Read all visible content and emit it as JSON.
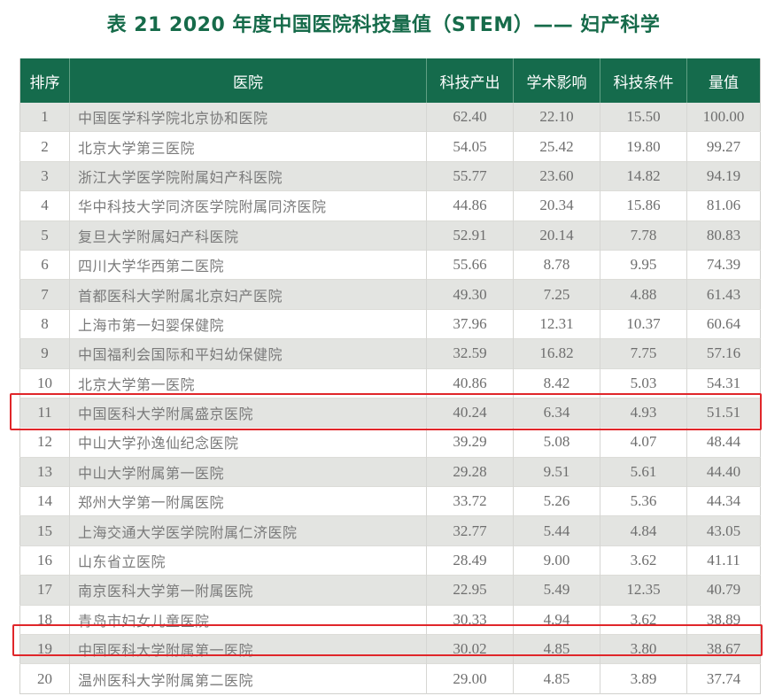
{
  "title": "表 21   2020 年度中国医院科技量值（STEM）—— 妇产科学",
  "table": {
    "headers": [
      "排序",
      "医院",
      "科技产出",
      "学术影响",
      "科技条件",
      "量值"
    ],
    "rows": [
      {
        "rank": "1",
        "hospital": "中国医学科学院北京协和医院",
        "output": "62.40",
        "impact": "22.10",
        "condition": "15.50",
        "value": "100.00"
      },
      {
        "rank": "2",
        "hospital": "北京大学第三医院",
        "output": "54.05",
        "impact": "25.42",
        "condition": "19.80",
        "value": "99.27"
      },
      {
        "rank": "3",
        "hospital": "浙江大学医学院附属妇产科医院",
        "output": "55.77",
        "impact": "23.60",
        "condition": "14.82",
        "value": "94.19"
      },
      {
        "rank": "4",
        "hospital": "华中科技大学同济医学院附属同济医院",
        "output": "44.86",
        "impact": "20.34",
        "condition": "15.86",
        "value": "81.06"
      },
      {
        "rank": "5",
        "hospital": "复旦大学附属妇产科医院",
        "output": "52.91",
        "impact": "20.14",
        "condition": "7.78",
        "value": "80.83"
      },
      {
        "rank": "6",
        "hospital": "四川大学华西第二医院",
        "output": "55.66",
        "impact": "8.78",
        "condition": "9.95",
        "value": "74.39"
      },
      {
        "rank": "7",
        "hospital": "首都医科大学附属北京妇产医院",
        "output": "49.30",
        "impact": "7.25",
        "condition": "4.88",
        "value": "61.43"
      },
      {
        "rank": "8",
        "hospital": "上海市第一妇婴保健院",
        "output": "37.96",
        "impact": "12.31",
        "condition": "10.37",
        "value": "60.64"
      },
      {
        "rank": "9",
        "hospital": "中国福利会国际和平妇幼保健院",
        "output": "32.59",
        "impact": "16.82",
        "condition": "7.75",
        "value": "57.16"
      },
      {
        "rank": "10",
        "hospital": "北京大学第一医院",
        "output": "40.86",
        "impact": "8.42",
        "condition": "5.03",
        "value": "54.31"
      },
      {
        "rank": "11",
        "hospital": "中国医科大学附属盛京医院",
        "output": "40.24",
        "impact": "6.34",
        "condition": "4.93",
        "value": "51.51"
      },
      {
        "rank": "12",
        "hospital": "中山大学孙逸仙纪念医院",
        "output": "39.29",
        "impact": "5.08",
        "condition": "4.07",
        "value": "48.44"
      },
      {
        "rank": "13",
        "hospital": "中山大学附属第一医院",
        "output": "29.28",
        "impact": "9.51",
        "condition": "5.61",
        "value": "44.40"
      },
      {
        "rank": "14",
        "hospital": "郑州大学第一附属医院",
        "output": "33.72",
        "impact": "5.26",
        "condition": "5.36",
        "value": "44.34"
      },
      {
        "rank": "15",
        "hospital": "上海交通大学医学院附属仁济医院",
        "output": "32.77",
        "impact": "5.44",
        "condition": "4.84",
        "value": "43.05"
      },
      {
        "rank": "16",
        "hospital": "山东省立医院",
        "output": "28.49",
        "impact": "9.00",
        "condition": "3.62",
        "value": "41.11"
      },
      {
        "rank": "17",
        "hospital": "南京医科大学第一附属医院",
        "output": "22.95",
        "impact": "5.49",
        "condition": "12.35",
        "value": "40.79"
      },
      {
        "rank": "18",
        "hospital": "青岛市妇女儿童医院",
        "output": "30.33",
        "impact": "4.94",
        "condition": "3.62",
        "value": "38.89"
      },
      {
        "rank": "19",
        "hospital": "中国医科大学附属第一医院",
        "output": "30.02",
        "impact": "4.85",
        "condition": "3.80",
        "value": "38.67"
      },
      {
        "rank": "20",
        "hospital": "温州医科大学附属第二医院",
        "output": "29.00",
        "impact": "4.85",
        "condition": "3.89",
        "value": "37.74"
      }
    ]
  },
  "highlights": {
    "color": "#e0262a",
    "ranks": [
      "11",
      "19"
    ]
  },
  "colors": {
    "header_bg": "#156b4c",
    "title": "#166b4a",
    "row_alt": "#e3e4e1"
  }
}
